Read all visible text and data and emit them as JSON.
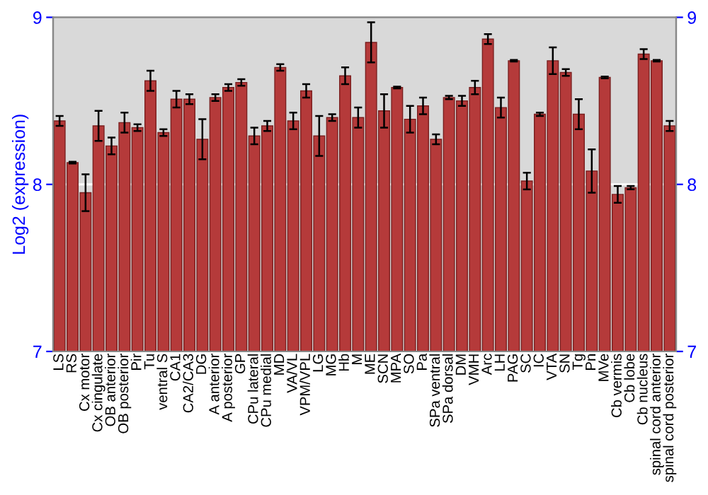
{
  "chart_data": {
    "type": "bar",
    "ylabel": "Log2 (expression)",
    "categories": [
      "LS",
      "RS",
      "Cx motor",
      "Cx cingulate",
      "OB anterior",
      "OB posterior",
      "Pir",
      "Tu",
      "ventral S",
      "CA1",
      "CA2/CA3",
      "DG",
      "A anterior",
      "A posterior",
      "GP",
      "CPu lateral",
      "CPu medial",
      "MD",
      "VA/VL",
      "VPM/VPL",
      "LG",
      "MG",
      "Hb",
      "M",
      "ME",
      "SCN",
      "MPA",
      "SO",
      "Pa",
      "SPa ventral",
      "SPa dorsal",
      "DM",
      "VMH",
      "Arc",
      "LH",
      "PAG",
      "SC",
      "IC",
      "VTA",
      "SN",
      "Tg",
      "Pn",
      "MVe",
      "Cb vermis",
      "Cb lobe",
      "Cb nucleus",
      "spinal cord anterior",
      "spinal cord posterior"
    ],
    "values": [
      8.38,
      8.13,
      7.95,
      8.35,
      8.23,
      8.37,
      8.34,
      8.62,
      8.31,
      8.51,
      8.51,
      8.27,
      8.52,
      8.58,
      8.61,
      8.29,
      8.35,
      8.7,
      8.38,
      8.56,
      8.29,
      8.4,
      8.65,
      8.4,
      8.85,
      8.44,
      8.58,
      8.39,
      8.47,
      8.27,
      8.52,
      8.5,
      8.58,
      8.87,
      8.46,
      8.74,
      8.02,
      8.42,
      8.74,
      8.67,
      8.42,
      8.08,
      8.64,
      7.94,
      7.98,
      8.78,
      8.74,
      8.35
    ],
    "errors": [
      0.03,
      0.005,
      0.11,
      0.09,
      0.05,
      0.06,
      0.02,
      0.06,
      0.02,
      0.05,
      0.03,
      0.12,
      0.02,
      0.02,
      0.02,
      0.05,
      0.03,
      0.02,
      0.05,
      0.04,
      0.12,
      0.02,
      0.05,
      0.06,
      0.12,
      0.1,
      0.005,
      0.08,
      0.05,
      0.03,
      0.01,
      0.03,
      0.04,
      0.03,
      0.06,
      0.005,
      0.05,
      0.01,
      0.08,
      0.02,
      0.09,
      0.13,
      0.005,
      0.05,
      0.01,
      0.03,
      0.005,
      0.03
    ],
    "color": "#b53a3a",
    "ylim": [
      7,
      9
    ],
    "yticks": [
      7,
      8,
      9
    ],
    "y2lim": [
      7,
      9
    ],
    "y2ticks": [
      7,
      8,
      9
    ],
    "grid": "y"
  }
}
